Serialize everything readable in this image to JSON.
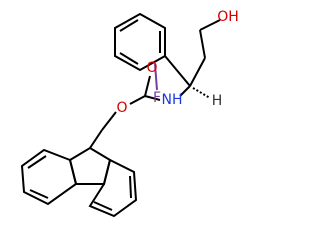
{
  "nodes": [
    {
      "label": "OH"
    },
    {
      "label": "O"
    },
    {
      "label": "F"
    },
    {
      "label": "NH"
    },
    {
      "label": "H"
    },
    {
      "label": "O"
    }
  ]
}
